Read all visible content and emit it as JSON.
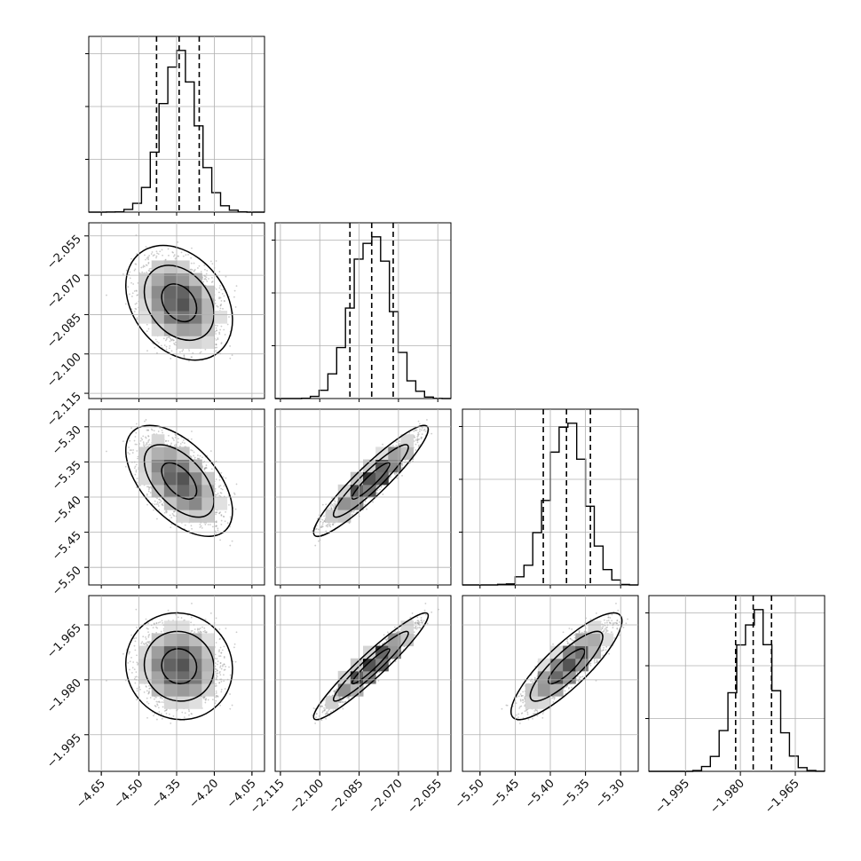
{
  "chart_data": {
    "type": "corner",
    "colors": {
      "ink": "#000000",
      "grid": "#b0b0b0",
      "points": "#9a9a9a",
      "background": "#ffffff"
    },
    "grid": true,
    "parameters": [
      {
        "axis_range": [
          -4.7,
          -4.0
        ],
        "ticks": [
          -4.65,
          -4.5,
          -4.35,
          -4.2,
          -4.05
        ],
        "tick_labels": [
          "−4.65",
          "−4.50",
          "−4.35",
          "−4.20",
          "−4.05"
        ],
        "center": -4.34,
        "sd": 0.07,
        "quantiles": [
          -4.43,
          -4.34,
          -4.26
        ]
      },
      {
        "axis_range": [
          -2.117,
          -2.05
        ],
        "ticks": [
          -2.115,
          -2.1,
          -2.085,
          -2.07,
          -2.055
        ],
        "tick_labels": [
          "−2.115",
          "−2.100",
          "−2.085",
          "−2.070",
          "−2.055"
        ],
        "center": -2.0805,
        "sd": 0.0072,
        "quantiles": [
          -2.0885,
          -2.0802,
          -2.072
        ]
      },
      {
        "axis_range": [
          -5.525,
          -5.275
        ],
        "ticks": [
          -5.5,
          -5.45,
          -5.4,
          -5.35,
          -5.3
        ],
        "tick_labels": [
          "−5.50",
          "−5.45",
          "−5.40",
          "−5.35",
          "−5.30"
        ],
        "center": -5.377,
        "sd": 0.026,
        "quantiles": [
          -5.41,
          -5.377,
          -5.343
        ]
      },
      {
        "axis_range": [
          -2.005,
          -1.957
        ],
        "ticks": [
          -1.995,
          -1.98,
          -1.965
        ],
        "tick_labels": [
          "−1.995",
          "−1.980",
          "−1.965"
        ],
        "center": -1.9763,
        "sd": 0.0048,
        "quantiles": [
          -1.9813,
          -1.9765,
          -1.9715
        ]
      }
    ],
    "correlations": [
      {
        "pair": [
          1,
          0
        ],
        "rho": -0.3
      },
      {
        "pair": [
          2,
          0
        ],
        "rho": -0.55
      },
      {
        "pair": [
          2,
          1
        ],
        "rho": 0.93
      },
      {
        "pair": [
          3,
          0
        ],
        "rho": -0.05
      },
      {
        "pair": [
          3,
          1
        ],
        "rho": 0.95
      },
      {
        "pair": [
          3,
          2
        ],
        "rho": 0.85
      }
    ],
    "histogram_bins": 20,
    "contour_levels": [
      0.39,
      0.86,
      0.99
    ]
  }
}
